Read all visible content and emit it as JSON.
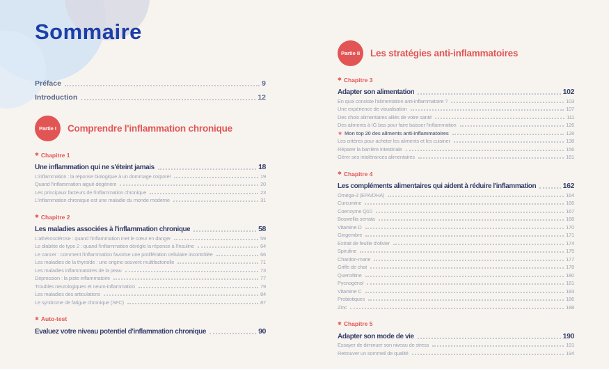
{
  "page": {
    "title": "Sommaire"
  },
  "icons": {
    "chapter_marker": "✱",
    "star": "★"
  },
  "colors": {
    "primary_blue": "#1c3ea6",
    "heading_navy": "#353f6b",
    "accent_red": "#e25555",
    "star_pink": "#e8638c",
    "starred_text": "#6d7692",
    "muted": "#9aa3b6",
    "front_color": "#5a688b",
    "leader": "#c3c8d2",
    "deco_blue": "#cfe2f4",
    "deco_lavender": "#d9d9e4",
    "deco_lightblue": "#ddebf8"
  },
  "front_matter": [
    {
      "label": "Préface",
      "page": "9"
    },
    {
      "label": "Introduction",
      "page": "12"
    }
  ],
  "parts": [
    {
      "badge": "Partie I",
      "title": "Comprendre l'inflammation chronique",
      "sections": [
        {
          "label": "Chapitre 1",
          "title": "Une inflammation qui ne s'éteint jamais",
          "page": "18",
          "items": [
            {
              "label": "L'inflammation : la réponse biologique à un dommage corporel",
              "page": "19"
            },
            {
              "label": "Quand l'inflammation aiguë dégénère",
              "page": "20"
            },
            {
              "label": "Les principaux facteurs de l'inflammation chronique",
              "page": "23"
            },
            {
              "label": "L'inflammation chronique est une maladie du monde moderne",
              "page": "31"
            }
          ]
        },
        {
          "label": "Chapitre 2",
          "title": "Les maladies associées à l'inflammation chronique",
          "page": "58",
          "items": [
            {
              "label": "L'athérosclérose : quand l'inflammation met le cœur en danger",
              "page": "59"
            },
            {
              "label": "Le diabète de type 2 : quand l'inflammation dérègle la réponse à l'insuline",
              "page": "64"
            },
            {
              "label": "Le cancer : comment l'inflammation favorise une prolifération cellulaire incontrôlée",
              "page": "66"
            },
            {
              "label": "Les maladies de la thyroïde : une origine souvent multifactorielle",
              "page": "71"
            },
            {
              "label": "Les maladies inflammatoires de la peau",
              "page": "73"
            },
            {
              "label": "Dépression : la piste inflammatoire",
              "page": "77"
            },
            {
              "label": "Troubles neurologiques et neuro-inflammation",
              "page": "79"
            },
            {
              "label": "Les maladies des articulations",
              "page": "84"
            },
            {
              "label": "Le syndrome de fatigue chronique (SFC)",
              "page": "87"
            }
          ]
        },
        {
          "label": "Auto-test",
          "title": "Évaluez votre niveau potentiel d'inflammation chronique",
          "page": "90",
          "items": []
        }
      ]
    },
    {
      "badge": "Partie II",
      "title": "Les stratégies anti-inflammatoires",
      "sections": [
        {
          "label": "Chapitre 3",
          "title": "Adapter son alimentation",
          "page": "102",
          "items": [
            {
              "label": "En quoi consiste l'alimentation anti-inflammatoire ?",
              "page": "103"
            },
            {
              "label": "Une expérience de visualisation",
              "page": "107"
            },
            {
              "label": "Des choix alimentaires alliés de votre santé",
              "page": "111"
            },
            {
              "label": "Des aliments à IG bas pour faire baisser l'inflammation",
              "page": "126"
            },
            {
              "label": "Mon top 20 des aliments anti-inflammatoires",
              "page": "128",
              "starred": true
            },
            {
              "label": "Les critères pour acheter les aliments et les cuisiner",
              "page": "138"
            },
            {
              "label": "Réparer la barrière intestinale",
              "page": "156"
            },
            {
              "label": "Gérer ses intolérances alimentaires",
              "page": "161"
            }
          ]
        },
        {
          "label": "Chapitre 4",
          "title": "Les compléments alimentaires qui aident à réduire l'inflammation",
          "page": "162",
          "items": [
            {
              "label": "Oméga-3 (EPA/DHA)",
              "page": "164"
            },
            {
              "label": "Curcumine",
              "page": "166"
            },
            {
              "label": "Coenzyme Q10",
              "page": "167"
            },
            {
              "label": "Boswellia serrata",
              "page": "168"
            },
            {
              "label": "Vitamine D",
              "page": "170"
            },
            {
              "label": "Gingembre",
              "page": "171"
            },
            {
              "label": "Extrait de feuille d'olivier",
              "page": "174"
            },
            {
              "label": "Spiruline",
              "page": "175"
            },
            {
              "label": "Chardon-marie",
              "page": "177"
            },
            {
              "label": "Griffe de chat",
              "page": "178"
            },
            {
              "label": "Quercétine",
              "page": "180"
            },
            {
              "label": "Pycnogénol",
              "page": "181"
            },
            {
              "label": "Vitamine C",
              "page": "183"
            },
            {
              "label": "Probiotiques",
              "page": "186"
            },
            {
              "label": "Zinc",
              "page": "188"
            }
          ]
        },
        {
          "label": "Chapitre 5",
          "title": "Adapter son mode de vie",
          "page": "190",
          "items": [
            {
              "label": "Essayer de diminuer son niveau de stress",
              "page": "191"
            },
            {
              "label": "Retrouver un sommeil de qualité",
              "page": "194"
            }
          ]
        }
      ]
    }
  ]
}
